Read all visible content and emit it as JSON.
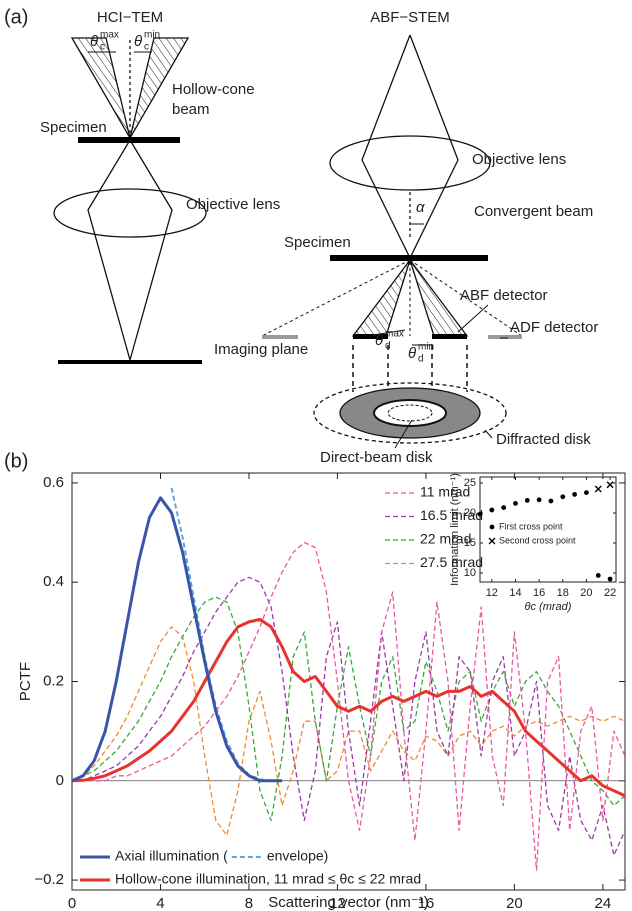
{
  "panel_a": {
    "label": "(a)",
    "hci": {
      "title": "HCI−TEM",
      "theta_max": {
        "base": "θ",
        "sub": "c",
        "sup": "max"
      },
      "theta_min": {
        "base": "θ",
        "sub": "c",
        "sup": "min"
      },
      "beam": [
        "Hollow-cone",
        "beam"
      ],
      "specimen": "Specimen",
      "lens": "Objective lens",
      "plane": "Imaging plane"
    },
    "abf": {
      "title": "ABF−STEM",
      "lens": "Objective lens",
      "alpha": "α",
      "beam": "Convergent beam",
      "specimen": "Specimen",
      "abf_detector": "ABF detector",
      "adf_detector": "ADF detector",
      "theta_max": {
        "base": "θ",
        "sub": "d",
        "sup": "max"
      },
      "theta_min": {
        "base": "θ",
        "sub": "d",
        "sup": "min"
      },
      "diffracted": "Diffracted disk",
      "direct": "Direct-beam disk"
    }
  },
  "panel_b": {
    "label": "(b)"
  },
  "chart_data": [
    {
      "type": "line",
      "xlabel": "Scattering vector (nm⁻¹)",
      "ylabel": "PCTF",
      "xlim": [
        0,
        25
      ],
      "ylim": [
        -0.22,
        0.62
      ],
      "xticks": [
        0,
        4,
        8,
        12,
        16,
        20,
        24
      ],
      "yticks": [
        {
          "value": -0.2,
          "label": "−0.2"
        },
        0,
        0.2,
        0.4,
        0.6
      ],
      "x": [
        0,
        0.5,
        1,
        1.5,
        2,
        2.5,
        3,
        3.5,
        4,
        4.5,
        5,
        5.5,
        6,
        6.5,
        7,
        7.5,
        8,
        8.5,
        9,
        9.5,
        10,
        10.5,
        11,
        11.5,
        12,
        12.5,
        13,
        13.5,
        14,
        14.5,
        15,
        15.5,
        16,
        16.5,
        17,
        17.5,
        18,
        18.5,
        19,
        19.5,
        20,
        20.5,
        21,
        21.5,
        22,
        22.5,
        23,
        23.5,
        24,
        24.5,
        25
      ],
      "series": [
        {
          "name": "Axial illumination (",
          "color": "#3a55a8",
          "width": 3,
          "dash": false,
          "legend": "lower-left",
          "values": [
            0,
            0.01,
            0.04,
            0.1,
            0.2,
            0.32,
            0.44,
            0.53,
            0.57,
            0.54,
            0.46,
            0.35,
            0.24,
            0.14,
            0.07,
            0.03,
            0.01,
            0,
            0,
            0,
            null,
            null,
            null,
            null,
            null,
            null,
            null,
            null,
            null,
            null,
            null,
            null,
            null,
            null,
            null,
            null,
            null,
            null,
            null,
            null,
            null,
            null,
            null,
            null,
            null,
            null,
            null,
            null,
            null,
            null,
            null
          ]
        },
        {
          "name": "envelope)",
          "color": "#5aa8e0",
          "width": 2,
          "dash": true,
          "legend": "lower-left",
          "legend_inline": true,
          "values": [
            null,
            null,
            null,
            null,
            null,
            null,
            null,
            null,
            null,
            0.59,
            0.49,
            0.37,
            0.25,
            0.15,
            0.08,
            0.035,
            0.012,
            0.003,
            0,
            0,
            null,
            null,
            null,
            null,
            null,
            null,
            null,
            null,
            null,
            null,
            null,
            null,
            null,
            null,
            null,
            null,
            null,
            null,
            null,
            null,
            null,
            null,
            null,
            null,
            null,
            null,
            null,
            null,
            null,
            null,
            null
          ]
        },
        {
          "name": "Hollow-cone illumination, 11 mrad ≤ θc ≤ 22 mrad",
          "color": "#e8322e",
          "width": 3,
          "dash": false,
          "legend": "lower-left",
          "values": [
            0,
            0.001,
            0.005,
            0.01,
            0.02,
            0.03,
            0.045,
            0.06,
            0.08,
            0.1,
            0.13,
            0.16,
            0.2,
            0.24,
            0.28,
            0.31,
            0.32,
            0.325,
            0.31,
            0.27,
            0.22,
            0.2,
            0.21,
            0.18,
            0.15,
            0.14,
            0.15,
            0.14,
            0.16,
            0.17,
            0.16,
            0.17,
            0.18,
            0.17,
            0.18,
            0.18,
            0.19,
            0.17,
            0.18,
            0.16,
            0.14,
            0.1,
            0.08,
            0.06,
            0.04,
            0.02,
            0,
            0.01,
            -0.01,
            -0.02,
            -0.03
          ]
        },
        {
          "name": "11 mrad",
          "color": "#e85aa0",
          "width": 1.3,
          "dash": true,
          "legend": "upper-right",
          "values": [
            0,
            0,
            0,
            0,
            0.01,
            0.01,
            0.02,
            0.03,
            0.04,
            0.05,
            0.07,
            0.09,
            0.11,
            0.14,
            0.17,
            0.21,
            0.26,
            0.31,
            0.37,
            0.42,
            0.46,
            0.48,
            0.47,
            0.38,
            0.2,
            0,
            -0.1,
            0.05,
            0.3,
            0.38,
            0.1,
            -0.12,
            0.1,
            0.36,
            0.2,
            -0.1,
            0.15,
            0.35,
            0.05,
            -0.05,
            0.3,
            0.1,
            -0.18,
            0.2,
            0.25,
            -0.1,
            0.1,
            0.15,
            -0.08,
            0.1,
            0.05
          ]
        },
        {
          "name": "16.5 mrad",
          "color": "#9a3aa8",
          "width": 1.3,
          "dash": true,
          "legend": "upper-right",
          "values": [
            0,
            0,
            0.01,
            0.02,
            0.03,
            0.05,
            0.07,
            0.1,
            0.13,
            0.17,
            0.21,
            0.26,
            0.3,
            0.34,
            0.37,
            0.4,
            0.41,
            0.4,
            0.35,
            0.22,
            0.05,
            -0.08,
            0.02,
            0.25,
            0.32,
            0.1,
            -0.05,
            0.12,
            0.3,
            0.15,
            0,
            0.2,
            0.3,
            0.1,
            0.05,
            0.25,
            0.22,
            0.05,
            0.2,
            0.25,
            0.05,
            0.1,
            0.2,
            -0.05,
            -0.1,
            0.05,
            -0.08,
            -0.12,
            -0.05,
            -0.15,
            -0.1
          ]
        },
        {
          "name": "22 mrad",
          "color": "#3aa83a",
          "width": 1.3,
          "dash": true,
          "legend": "upper-right",
          "values": [
            0,
            0.01,
            0.02,
            0.04,
            0.06,
            0.09,
            0.12,
            0.16,
            0.2,
            0.25,
            0.29,
            0.33,
            0.36,
            0.37,
            0.36,
            0.3,
            0.15,
            -0.02,
            -0.08,
            0.05,
            0.25,
            0.3,
            0.12,
            0,
            0.15,
            0.27,
            0.15,
            0.05,
            0.2,
            0.25,
            0.1,
            0.12,
            0.24,
            0.18,
            0.1,
            0.2,
            0.22,
            0.12,
            0.18,
            0.22,
            0.15,
            0.2,
            0.22,
            0.18,
            0.15,
            0.1,
            0.05,
            0,
            -0.02,
            -0.05,
            -0.03
          ]
        },
        {
          "name": "27.5 mrad",
          "color": "#f08a30",
          "width": 1.3,
          "dash": true,
          "legend": "upper-right",
          "values": [
            0,
            0.01,
            0.03,
            0.06,
            0.09,
            0.13,
            0.18,
            0.23,
            0.28,
            0.31,
            0.29,
            0.2,
            0.05,
            -0.08,
            -0.11,
            -0.02,
            0.12,
            0.18,
            0.08,
            -0.05,
            0.02,
            0.12,
            0.12,
            0,
            0.02,
            0.1,
            0.1,
            0.02,
            0.06,
            0.1,
            0.06,
            0.04,
            0.09,
            0.08,
            0.05,
            0.09,
            0.1,
            0.07,
            0.1,
            0.11,
            0.09,
            0.11,
            0.12,
            0.11,
            0.12,
            0.13,
            0.12,
            0.13,
            0.12,
            0.13,
            0.12
          ]
        }
      ]
    },
    {
      "type": "scatter",
      "xlabel": "θc (mrad)",
      "ylabel": "Information limit (nm⁻¹)",
      "xlim": [
        11,
        22.5
      ],
      "ylim": [
        8.5,
        26
      ],
      "xticks": [
        12,
        14,
        16,
        18,
        20,
        22
      ],
      "yticks": [
        10,
        15,
        20,
        25
      ],
      "series": [
        {
          "name": "First cross point",
          "marker": "dot",
          "color": "#000000",
          "x": [
            11,
            12,
            13,
            14,
            15,
            16,
            17,
            18,
            19,
            20,
            21,
            22
          ],
          "values": [
            19.8,
            20.5,
            20.9,
            21.6,
            22.1,
            22.2,
            22,
            22.7,
            23.1,
            23.4,
            9.6,
            9
          ]
        },
        {
          "name": "Second cross point",
          "marker": "x",
          "color": "#000000",
          "x": [
            21,
            22
          ],
          "values": [
            24,
            24.7
          ]
        }
      ]
    }
  ]
}
